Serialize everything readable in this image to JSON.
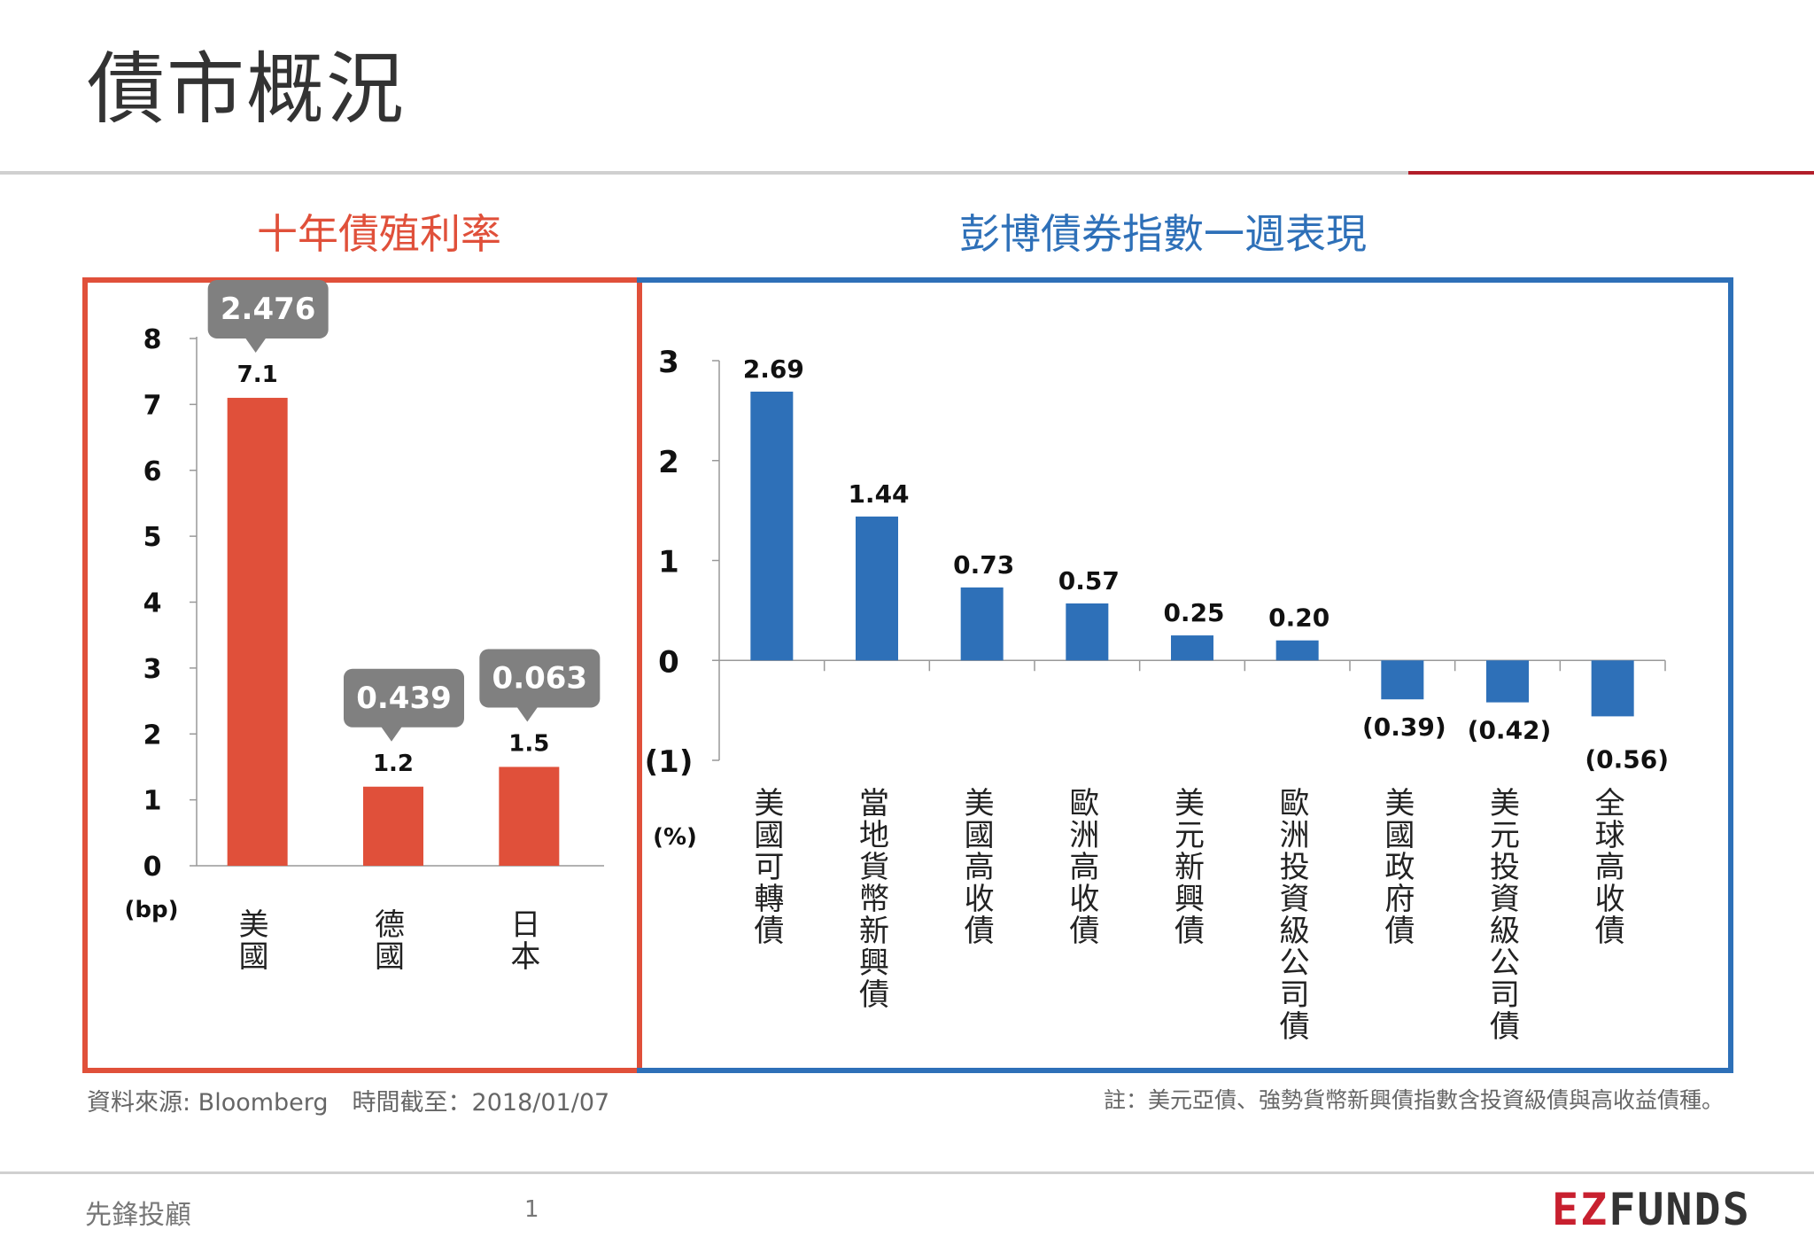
{
  "page": {
    "title": "債市概況",
    "source": "資料來源: Bloomberg　時間截至：2018/01/07",
    "note": "註：美元亞債、強勢貨幣新興債指數含投資級債與高收益債種。",
    "company": "先鋒投顧",
    "page_number": "1",
    "logo_ez": "EZ",
    "logo_funds": "FUNDS"
  },
  "colors": {
    "left_accent": "#e0503a",
    "right_accent": "#2e70b8",
    "bar_left": "#e0503a",
    "bar_right": "#2e70b8",
    "callout": "#808080",
    "rule_red": "#b21e2a"
  },
  "chart_data": [
    {
      "type": "bar",
      "title": "十年債殖利率",
      "categories": [
        "美國",
        "德國",
        "日本"
      ],
      "values": [
        7.1,
        1.2,
        1.5
      ],
      "value_labels": [
        "7.1",
        "1.2",
        "1.5"
      ],
      "callouts": [
        "2.476",
        "0.439",
        "0.063"
      ],
      "ylabel": "(bp)",
      "ylim": [
        0,
        8
      ],
      "yticks": [
        "0",
        "1",
        "2",
        "3",
        "4",
        "5",
        "6",
        "7",
        "8"
      ],
      "grid": false
    },
    {
      "type": "bar",
      "title": "彭博債券指數一週表現",
      "categories": [
        "美國可轉債",
        "當地貨幣新興債",
        "美國高收債",
        "歐洲高收債",
        "美元新興債",
        "歐洲投資級公司債",
        "美國政府債",
        "美元投資級公司債",
        "全球高收債"
      ],
      "values": [
        2.69,
        1.44,
        0.73,
        0.57,
        0.25,
        0.2,
        -0.39,
        -0.42,
        -0.56
      ],
      "value_labels": [
        "2.69",
        "1.44",
        "0.73",
        "0.57",
        "0.25",
        "0.20",
        "(0.39)",
        "(0.42)",
        "(0.56)"
      ],
      "ylabel": "(%)",
      "ylim": [
        -1,
        3
      ],
      "yticks": [
        "(1)",
        "0",
        "1",
        "2",
        "3"
      ],
      "grid": false
    }
  ]
}
